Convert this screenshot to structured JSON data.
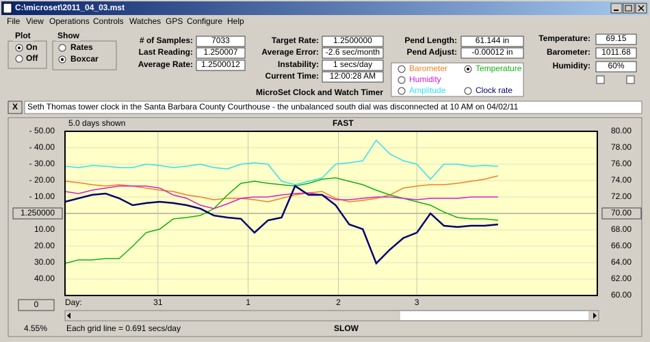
{
  "window": {
    "title": "C:\\microset\\2011_04_03.mst"
  },
  "menu": [
    "File",
    "View",
    "Operations",
    "Controls",
    "Watches",
    "GPS",
    "Configure",
    "Help"
  ],
  "plot": {
    "title": "Plot",
    "options": [
      "On",
      "Off"
    ],
    "selected": 0
  },
  "show": {
    "title": "Show",
    "options": [
      "Rates",
      "Boxcar"
    ],
    "selected": 1
  },
  "stats": [
    {
      "label": "# of Samples:",
      "value": "7033"
    },
    {
      "label": "Last Reading:",
      "value": "1.250007"
    },
    {
      "label": "Average Rate:",
      "value": "1.2500012"
    }
  ],
  "rates": [
    {
      "label": "Target Rate:",
      "value": "1.2500000"
    },
    {
      "label": "Average Error:",
      "value": "-2.6 sec/month"
    },
    {
      "label": "Instability:",
      "value": "1 secs/day"
    },
    {
      "label": "Current Time:",
      "value": "12:00:28 AM"
    }
  ],
  "pendulum": [
    {
      "label": "Pend Length:",
      "value": "61.144 in"
    },
    {
      "label": "Pend Adjust:",
      "value": "-0.00012 in"
    }
  ],
  "environment": [
    {
      "label": "Temperature:",
      "value": "69.15"
    },
    {
      "label": "Barometer:",
      "value": "1011.68"
    },
    {
      "label": "Humidity:",
      "value": "60%"
    }
  ],
  "app_title": "MicroSet Clock and Watch Timer",
  "close_button": "X",
  "note": "Seth Thomas tower clock in the Santa Barbara County Courthouse - the unbalanced south dial was disconnected at 10 AM on 04/02/11",
  "chart_data": {
    "type": "line",
    "title": "FAST",
    "bottom_label": "SLOW",
    "span_label": "5.0 days shown",
    "x_label": "Day:",
    "zoom_button": "0",
    "zoom_percent": "4.55%",
    "grid_note": "Each grid line = 0.691 secs/day",
    "grid": true,
    "legend_selected": 1,
    "xlim": [
      0,
      5.9
    ],
    "xticks": [
      {
        "value": 1.03,
        "label": "31"
      },
      {
        "value": 2.03,
        "label": "1"
      },
      {
        "value": 3.03,
        "label": "2"
      },
      {
        "value": 3.9,
        "label": "3"
      }
    ],
    "ylim": [
      -50,
      50
    ],
    "yticks": [
      {
        "value": 50,
        "label": "- 50.00"
      },
      {
        "value": 40,
        "label": "- 40.00"
      },
      {
        "value": 30,
        "label": "- 30.00"
      },
      {
        "value": 20,
        "label": "- 20.00"
      },
      {
        "value": 10,
        "label": "- 10.00"
      },
      {
        "value": 0,
        "label": "1.250000"
      },
      {
        "value": -10,
        "label": "10.00"
      },
      {
        "value": -20,
        "label": "20.00"
      },
      {
        "value": -30,
        "label": "30.00"
      },
      {
        "value": -40,
        "label": "40.00"
      }
    ],
    "y2lim": [
      60,
      80
    ],
    "y2ticks": [
      {
        "value": 80,
        "label": "80.00"
      },
      {
        "value": 78,
        "label": "78.00"
      },
      {
        "value": 76,
        "label": "76.00"
      },
      {
        "value": 74,
        "label": "74.00"
      },
      {
        "value": 72,
        "label": "72.00"
      },
      {
        "value": 70,
        "label": "70.00"
      },
      {
        "value": 68,
        "label": "68.00"
      },
      {
        "value": 66,
        "label": "66.00"
      },
      {
        "value": 64,
        "label": "64.00"
      },
      {
        "value": 62,
        "label": "62.00"
      },
      {
        "value": 60,
        "label": "60.00"
      }
    ],
    "x": [
      0,
      0.15,
      0.3,
      0.45,
      0.6,
      0.75,
      0.9,
      1.05,
      1.2,
      1.35,
      1.5,
      1.65,
      1.8,
      1.95,
      2.1,
      2.25,
      2.4,
      2.55,
      2.7,
      2.85,
      3.0,
      3.15,
      3.3,
      3.45,
      3.6,
      3.75,
      3.9,
      4.05,
      4.2,
      4.35,
      4.5,
      4.65,
      4.8
    ],
    "series": [
      {
        "name": "Barometer",
        "color": "#f08020",
        "axis": "y2",
        "values": [
          73.92,
          73.75,
          73.5,
          73.33,
          73.5,
          73.33,
          73.08,
          72.83,
          72.67,
          72.25,
          72,
          71.67,
          71.83,
          71.83,
          71.67,
          71.42,
          71.83,
          72.25,
          72.5,
          72.67,
          71.83,
          71.42,
          71.58,
          71.83,
          72.25,
          73.08,
          73.33,
          73.5,
          73.5,
          73.67,
          73.92,
          74.17,
          74.58
        ]
      },
      {
        "name": "Temperature",
        "color": "#10b010",
        "axis": "y2",
        "values": [
          63.92,
          64.33,
          64.33,
          64.5,
          64.5,
          66,
          67.67,
          68.08,
          69.33,
          69.5,
          69.75,
          70.58,
          72.25,
          73.67,
          73.92,
          73.67,
          73.5,
          73.33,
          73.67,
          74.17,
          74.33,
          73.92,
          73.5,
          72.83,
          72.25,
          71.83,
          71.42,
          71,
          70.17,
          69.5,
          69.33,
          69.33,
          69.17
        ]
      },
      {
        "name": "Humidity",
        "color": "#d020d0",
        "axis": "y2",
        "values": [
          72.67,
          72.42,
          72.83,
          73.08,
          73.33,
          73.33,
          73.33,
          73.08,
          72.25,
          71.83,
          71,
          70.58,
          71.17,
          71.83,
          72,
          72,
          72.25,
          72.42,
          72.5,
          72.25,
          71.67,
          71.67,
          71.83,
          72,
          72,
          71.83,
          71.67,
          71.83,
          71.83,
          71.83,
          72,
          72,
          72
        ]
      },
      {
        "name": "Amplitude",
        "color": "#30e0f0",
        "axis": "y2",
        "values": [
          75.75,
          75.58,
          75.83,
          75.75,
          75.58,
          75.58,
          76,
          75.83,
          75.58,
          75.75,
          76,
          75.58,
          75.42,
          76,
          76.17,
          76,
          73.92,
          73.5,
          73.92,
          74.33,
          76,
          76.17,
          76.42,
          78.92,
          77.25,
          76.42,
          76,
          74.17,
          76,
          76,
          75.75,
          75.83,
          75.75
        ]
      },
      {
        "name": "Clock rate",
        "color": "#000070",
        "axis": "y",
        "values": [
          7.1,
          9.2,
          11.3,
          12.1,
          9.2,
          5,
          6.3,
          7.1,
          6.3,
          5,
          2.9,
          -1.3,
          -2.5,
          -3.3,
          -11.7,
          -4.2,
          -2.5,
          16.7,
          11.3,
          11.3,
          5,
          -6.7,
          -9.6,
          -30.4,
          -22.1,
          -15,
          -11.7,
          0,
          -7.5,
          -8.3,
          -7.5,
          -7.5,
          -6.7
        ]
      }
    ]
  }
}
